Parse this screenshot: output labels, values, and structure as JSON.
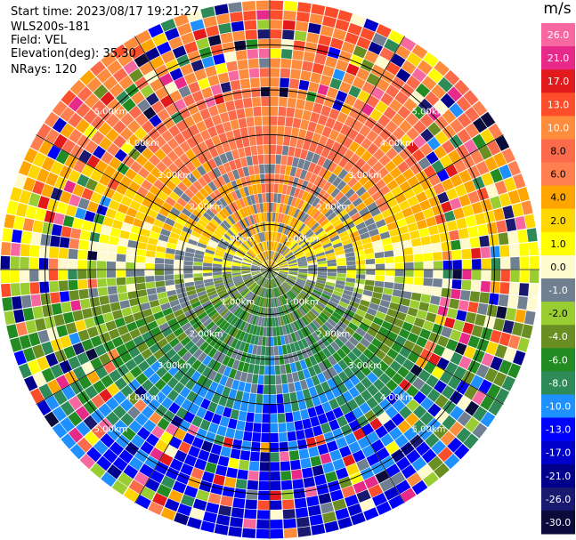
{
  "header": {
    "start_time": "Start time: 2023/08/17 19:21:27",
    "instrument": "WLS200s-181",
    "field": "Field: VEL",
    "elevation": "Elevation(deg): 35.30",
    "nrays": "NRays: 120"
  },
  "chart_data": {
    "type": "heatmap",
    "projection": "polar-ppi",
    "n_rays": 120,
    "range_rings_km": [
      "1.00km",
      "2.00km",
      "3.00km",
      "4.00km",
      "5.00km"
    ],
    "ring_values": [
      1,
      2,
      3,
      4,
      5
    ],
    "max_range_km": 6.0,
    "colorbar": {
      "unit": "m/s",
      "vmin": -30,
      "vmax": 30,
      "ticks": [
        "26.0",
        "21.0",
        "17.0",
        "13.0",
        "10.0",
        "8.0",
        "6.0",
        "4.0",
        "2.0",
        "1.0",
        "0.0",
        "-1.0",
        "-2.0",
        "-4.0",
        "-6.0",
        "-8.0",
        "-10.0",
        "-13.0",
        "-17.0",
        "-21.0",
        "-26.0",
        "-30.0"
      ],
      "colors": [
        "#f768a1",
        "#e7298a",
        "#e31a1c",
        "#fc4e2a",
        "#fd8d3c",
        "#fb6a4a",
        "#ff7f50",
        "#ffa500",
        "#ffd700",
        "#ffff00",
        "#fffacd",
        "#708090",
        "#9acd32",
        "#6b8e23",
        "#228b22",
        "#2e8b57",
        "#1e90ff",
        "#0000ff",
        "#0000cd",
        "#00008b",
        "#191970",
        "#0b0b3b"
      ]
    }
  }
}
